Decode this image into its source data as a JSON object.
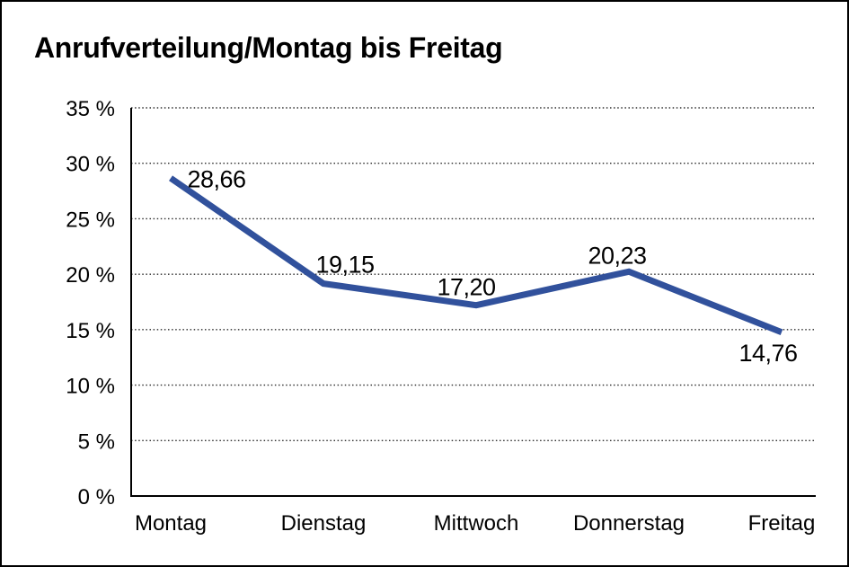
{
  "window": {
    "background": "#ffffff",
    "border_color": "#000000"
  },
  "chart_data": {
    "type": "line",
    "title": "Anrufverteilung/Montag bis Freitag",
    "categories": [
      "Montag",
      "Dienstag",
      "Mittwoch",
      "Donnerstag",
      "Freitag"
    ],
    "series": [
      {
        "name": "Anrufverteilung",
        "values": [
          28.66,
          19.15,
          17.2,
          20.23,
          14.76
        ],
        "value_labels": [
          "28,66",
          "19,15",
          "17,20",
          "20,23",
          "14,76"
        ],
        "color": "#31519C"
      }
    ],
    "xlabel": "",
    "ylabel": "",
    "ylim": [
      0,
      35
    ],
    "ytick_step": 5,
    "ytick_labels": [
      "0 %",
      "5 %",
      "10 %",
      "15 %",
      "20 %",
      "25 %",
      "30 %",
      "35 %"
    ],
    "grid": "horizontal-dotted",
    "legend_position": "none",
    "axis_color": "#000000",
    "gridline_color": "#2b2b2b",
    "text_color": "#000000"
  }
}
